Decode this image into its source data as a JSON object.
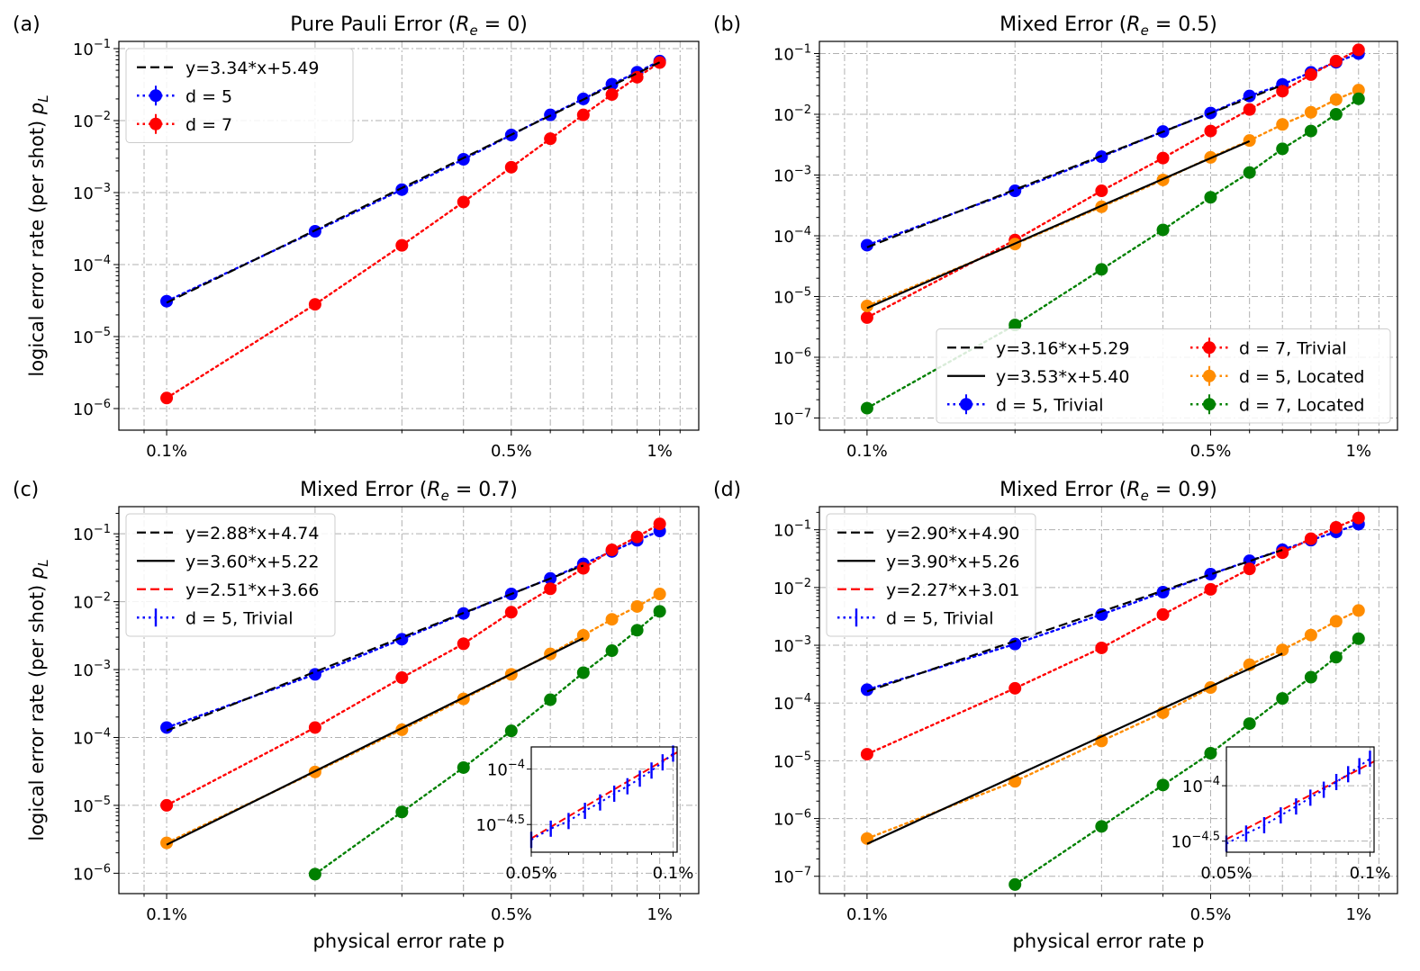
{
  "figure": {
    "xlabel": "physical error rate p",
    "ylabel": "logical error rate (per shot) p_L"
  },
  "chart_data": [
    {
      "panel": "(a)",
      "title": "Pure Pauli Error (R_e = 0)",
      "title_math": "R_e = 0",
      "type": "line",
      "xscale": "log",
      "yscale": "log",
      "xlim": [
        0.0008,
        0.012
      ],
      "ylim_exp": [
        -6.3,
        -0.9
      ],
      "xticks": [
        {
          "v": 0.001,
          "label": "0.1%"
        },
        {
          "v": 0.005,
          "label": "0.5%"
        },
        {
          "v": 0.01,
          "label": "1%"
        }
      ],
      "yticks": [
        -6,
        -5,
        -4,
        -3,
        -2,
        -1
      ],
      "x": [
        0.001,
        0.002,
        0.003,
        0.004,
        0.005,
        0.006,
        0.007,
        0.008,
        0.009,
        0.01
      ],
      "series": [
        {
          "name": "d = 5",
          "color": "#0000ff",
          "style": "dotted",
          "marker": "o",
          "values": [
            3.1e-05,
            0.00029,
            0.0011,
            0.0029,
            0.0063,
            0.012,
            0.02,
            0.032,
            0.047,
            0.067
          ]
        },
        {
          "name": "d = 7",
          "color": "#ff0000",
          "style": "dotted",
          "marker": "o",
          "values": [
            1.4e-06,
            2.8e-05,
            0.000185,
            0.00074,
            0.00225,
            0.0056,
            0.012,
            0.023,
            0.04,
            0.064
          ]
        }
      ],
      "fits": [
        {
          "label": "y=3.34*x+5.49",
          "slope": 3.34,
          "intercept": 5.49,
          "color": "#000000",
          "style": "dashed",
          "x_range": [
            0.001,
            0.01
          ]
        }
      ],
      "legend_order": [
        "fit0",
        "s0",
        "s1"
      ],
      "legend_loc": "upper-left",
      "legend_cols": 1
    },
    {
      "panel": "(b)",
      "title": "Mixed Error (R_e = 0.5)",
      "title_math": "R_e = 0.5",
      "type": "line",
      "xscale": "log",
      "yscale": "log",
      "xlim": [
        0.0008,
        0.012
      ],
      "ylim_exp": [
        -7.2,
        -0.8
      ],
      "xticks": [
        {
          "v": 0.001,
          "label": "0.1%"
        },
        {
          "v": 0.005,
          "label": "0.5%"
        },
        {
          "v": 0.01,
          "label": "1%"
        }
      ],
      "yticks": [
        -7,
        -6,
        -5,
        -4,
        -3,
        -2,
        -1
      ],
      "x": [
        0.001,
        0.002,
        0.003,
        0.004,
        0.005,
        0.006,
        0.007,
        0.008,
        0.009,
        0.01
      ],
      "series": [
        {
          "name": "d = 5, Trivial",
          "color": "#0000ff",
          "style": "dotted",
          "marker": "o",
          "values": [
            7e-05,
            0.00055,
            0.002,
            0.0052,
            0.0105,
            0.02,
            0.031,
            0.049,
            0.072,
            0.1
          ]
        },
        {
          "name": "d = 7, Trivial",
          "color": "#ff0000",
          "style": "dotted",
          "marker": "o",
          "values": [
            4.5e-06,
            8.5e-05,
            0.00055,
            0.0019,
            0.0053,
            0.012,
            0.024,
            0.045,
            0.075,
            0.115
          ]
        },
        {
          "name": "d = 5, Located",
          "color": "#ff8c00",
          "style": "dotted",
          "marker": "o",
          "values": [
            7e-06,
            7.3e-05,
            0.0003,
            0.00083,
            0.00195,
            0.0037,
            0.0068,
            0.0108,
            0.0175,
            0.025
          ]
        },
        {
          "name": "d = 7, Located",
          "color": "#008000",
          "style": "dotted",
          "marker": "o",
          "values": [
            1.45e-07,
            3.4e-06,
            2.8e-05,
            0.000125,
            0.00043,
            0.0011,
            0.0027,
            0.0053,
            0.01,
            0.018
          ]
        }
      ],
      "fits": [
        {
          "label": "y=3.16*x+5.29",
          "slope": 3.16,
          "intercept": 5.29,
          "color": "#000000",
          "style": "dashed",
          "x_range": [
            0.001,
            0.007
          ]
        },
        {
          "label": "y=3.53*x+5.40",
          "slope": 3.53,
          "intercept": 5.4,
          "color": "#000000",
          "style": "solid",
          "x_range": [
            0.001,
            0.006
          ]
        }
      ],
      "legend_order": [
        "fit0",
        "fit1",
        "s0",
        "s1",
        "s2",
        "s3"
      ],
      "legend_loc": "lower-right",
      "legend_cols": 2
    },
    {
      "panel": "(c)",
      "title": "Mixed Error (R_e = 0.7)",
      "title_math": "R_e = 0.7",
      "type": "line",
      "xscale": "log",
      "yscale": "log",
      "xlim": [
        0.0008,
        0.012
      ],
      "ylim_exp": [
        -6.3,
        -0.6
      ],
      "xticks": [
        {
          "v": 0.001,
          "label": "0.1%"
        },
        {
          "v": 0.005,
          "label": "0.5%"
        },
        {
          "v": 0.01,
          "label": "1%"
        }
      ],
      "yticks": [
        -6,
        -5,
        -4,
        -3,
        -2,
        -1
      ],
      "x": [
        0.001,
        0.002,
        0.003,
        0.004,
        0.005,
        0.006,
        0.007,
        0.008,
        0.009,
        0.01
      ],
      "series": [
        {
          "name": "d = 5, Trivial",
          "color": "#0000ff",
          "style": "dotted",
          "marker": "o",
          "values": [
            0.00014,
            0.00085,
            0.0028,
            0.0067,
            0.013,
            0.022,
            0.036,
            0.055,
            0.08,
            0.11
          ]
        },
        {
          "name": "d = 7, Trivial",
          "color": "#ff0000",
          "style": "dotted",
          "marker": "o",
          "values": [
            1e-05,
            0.00014,
            0.00076,
            0.0024,
            0.007,
            0.0155,
            0.031,
            0.058,
            0.09,
            0.14
          ]
        },
        {
          "name": "d = 5, Located",
          "color": "#ff8c00",
          "style": "dotted",
          "marker": "o",
          "values": [
            2.8e-06,
            3.1e-05,
            0.00013,
            0.00037,
            0.00085,
            0.0017,
            0.0032,
            0.0055,
            0.0085,
            0.013
          ]
        },
        {
          "name": "d = 7, Located",
          "color": "#008000",
          "style": "dotted",
          "marker": "o",
          "values": [
            null,
            9.7e-07,
            8e-06,
            3.6e-05,
            0.000125,
            0.00036,
            0.0009,
            0.0019,
            0.0038,
            0.0072
          ]
        }
      ],
      "fits": [
        {
          "label": "y=2.88*x+4.74",
          "slope": 2.88,
          "intercept": 4.74,
          "color": "#000000",
          "style": "dashed",
          "x_range": [
            0.001,
            0.007
          ]
        },
        {
          "label": "y=3.60*x+5.22",
          "slope": 3.6,
          "intercept": 5.22,
          "color": "#000000",
          "style": "solid",
          "x_range": [
            0.001,
            0.007
          ]
        },
        {
          "label": "y=2.51*x+3.66",
          "slope": 2.51,
          "intercept": 3.66,
          "color": "#ff0000",
          "style": "dashed",
          "x_range": null
        }
      ],
      "legend_order": [
        "fit0",
        "fit1",
        "fit2",
        "inset"
      ],
      "legend_loc": "upper-left",
      "legend_cols": 1,
      "inset": {
        "legend_label": "d = 5, Trivial",
        "xlim": [
          0.0005,
          0.00102
        ],
        "ylim_exp": [
          -4.75,
          -3.8
        ],
        "xticks": [
          {
            "v": 0.0005,
            "label": "0.05%"
          },
          {
            "v": 0.001,
            "label": "0.1%"
          }
        ],
        "yticks": [
          {
            "e": -4.5,
            "label": "−4.5"
          },
          {
            "e": -4,
            "label": "−4"
          }
        ],
        "x": [
          0.0005,
          0.00055,
          0.0006,
          0.00065,
          0.0007,
          0.00075,
          0.0008,
          0.00085,
          0.0009,
          0.00095,
          0.001
        ],
        "values": [
          2.3e-05,
          2.9e-05,
          3.4e-05,
          4.2e-05,
          5e-05,
          6e-05,
          7e-05,
          8.2e-05,
          9.7e-05,
          0.000115,
          0.000138
        ],
        "color": "#0000ff"
      }
    },
    {
      "panel": "(d)",
      "title": "Mixed Error (R_e = 0.9)",
      "title_math": "R_e = 0.9",
      "type": "line",
      "xscale": "log",
      "yscale": "log",
      "xlim": [
        0.0008,
        0.012
      ],
      "ylim_exp": [
        -7.3,
        -0.6
      ],
      "xticks": [
        {
          "v": 0.001,
          "label": "0.1%"
        },
        {
          "v": 0.005,
          "label": "0.5%"
        },
        {
          "v": 0.01,
          "label": "1%"
        }
      ],
      "yticks": [
        -7,
        -6,
        -5,
        -4,
        -3,
        -2,
        -1
      ],
      "x": [
        0.001,
        0.002,
        0.003,
        0.004,
        0.005,
        0.006,
        0.007,
        0.008,
        0.009,
        0.01
      ],
      "series": [
        {
          "name": "d = 5, Trivial",
          "color": "#0000ff",
          "style": "dotted",
          "marker": "o",
          "values": [
            0.00017,
            0.00105,
            0.0034,
            0.0083,
            0.017,
            0.029,
            0.045,
            0.066,
            0.092,
            0.125
          ]
        },
        {
          "name": "d = 7, Trivial",
          "color": "#ff0000",
          "style": "dotted",
          "marker": "o",
          "values": [
            1.3e-05,
            0.00018,
            0.0009,
            0.0034,
            0.0093,
            0.021,
            0.04,
            0.07,
            0.11,
            0.16
          ]
        },
        {
          "name": "d = 5, Located",
          "color": "#ff8c00",
          "style": "dotted",
          "marker": "o",
          "values": [
            4.5e-07,
            4.4e-06,
            2.2e-05,
            6.8e-05,
            0.000185,
            0.00046,
            0.00083,
            0.0015,
            0.0026,
            0.004
          ]
        },
        {
          "name": "d = 7, Located",
          "color": "#008000",
          "style": "dotted",
          "marker": "o",
          "values": [
            null,
            7.2e-08,
            7.3e-07,
            3.8e-06,
            1.35e-05,
            4.4e-05,
            0.00012,
            0.00028,
            0.00062,
            0.0013
          ]
        }
      ],
      "fits": [
        {
          "label": "y=2.90*x+4.90",
          "slope": 2.9,
          "intercept": 4.9,
          "color": "#000000",
          "style": "dashed",
          "x_range": [
            0.001,
            0.007
          ]
        },
        {
          "label": "y=3.90*x+5.26",
          "slope": 3.9,
          "intercept": 5.26,
          "color": "#000000",
          "style": "solid",
          "x_range": [
            0.001,
            0.007
          ]
        },
        {
          "label": "y=2.27*x+3.01",
          "slope": 2.27,
          "intercept": 3.01,
          "color": "#ff0000",
          "style": "dashed",
          "x_range": null
        }
      ],
      "legend_order": [
        "fit0",
        "fit1",
        "fit2",
        "inset"
      ],
      "legend_loc": "upper-left",
      "legend_cols": 1,
      "inset": {
        "legend_label": "d = 5, Trivial",
        "xlim": [
          0.0005,
          0.00102
        ],
        "ylim_exp": [
          -4.6,
          -3.65
        ],
        "xticks": [
          {
            "v": 0.0005,
            "label": "0.05%"
          },
          {
            "v": 0.001,
            "label": "0.1%"
          }
        ],
        "yticks": [
          {
            "e": -4.5,
            "label": "−4.5"
          },
          {
            "e": -4,
            "label": "−4"
          }
        ],
        "x": [
          0.0005,
          0.00055,
          0.0006,
          0.00065,
          0.0007,
          0.00075,
          0.0008,
          0.00085,
          0.0009,
          0.00095,
          0.001
        ],
        "values": [
          3e-05,
          3.7e-05,
          4.4e-05,
          5.4e-05,
          6.5e-05,
          7.8e-05,
          9.2e-05,
          0.000108,
          0.000127,
          0.00015,
          0.000175
        ],
        "color": "#0000ff"
      }
    }
  ]
}
